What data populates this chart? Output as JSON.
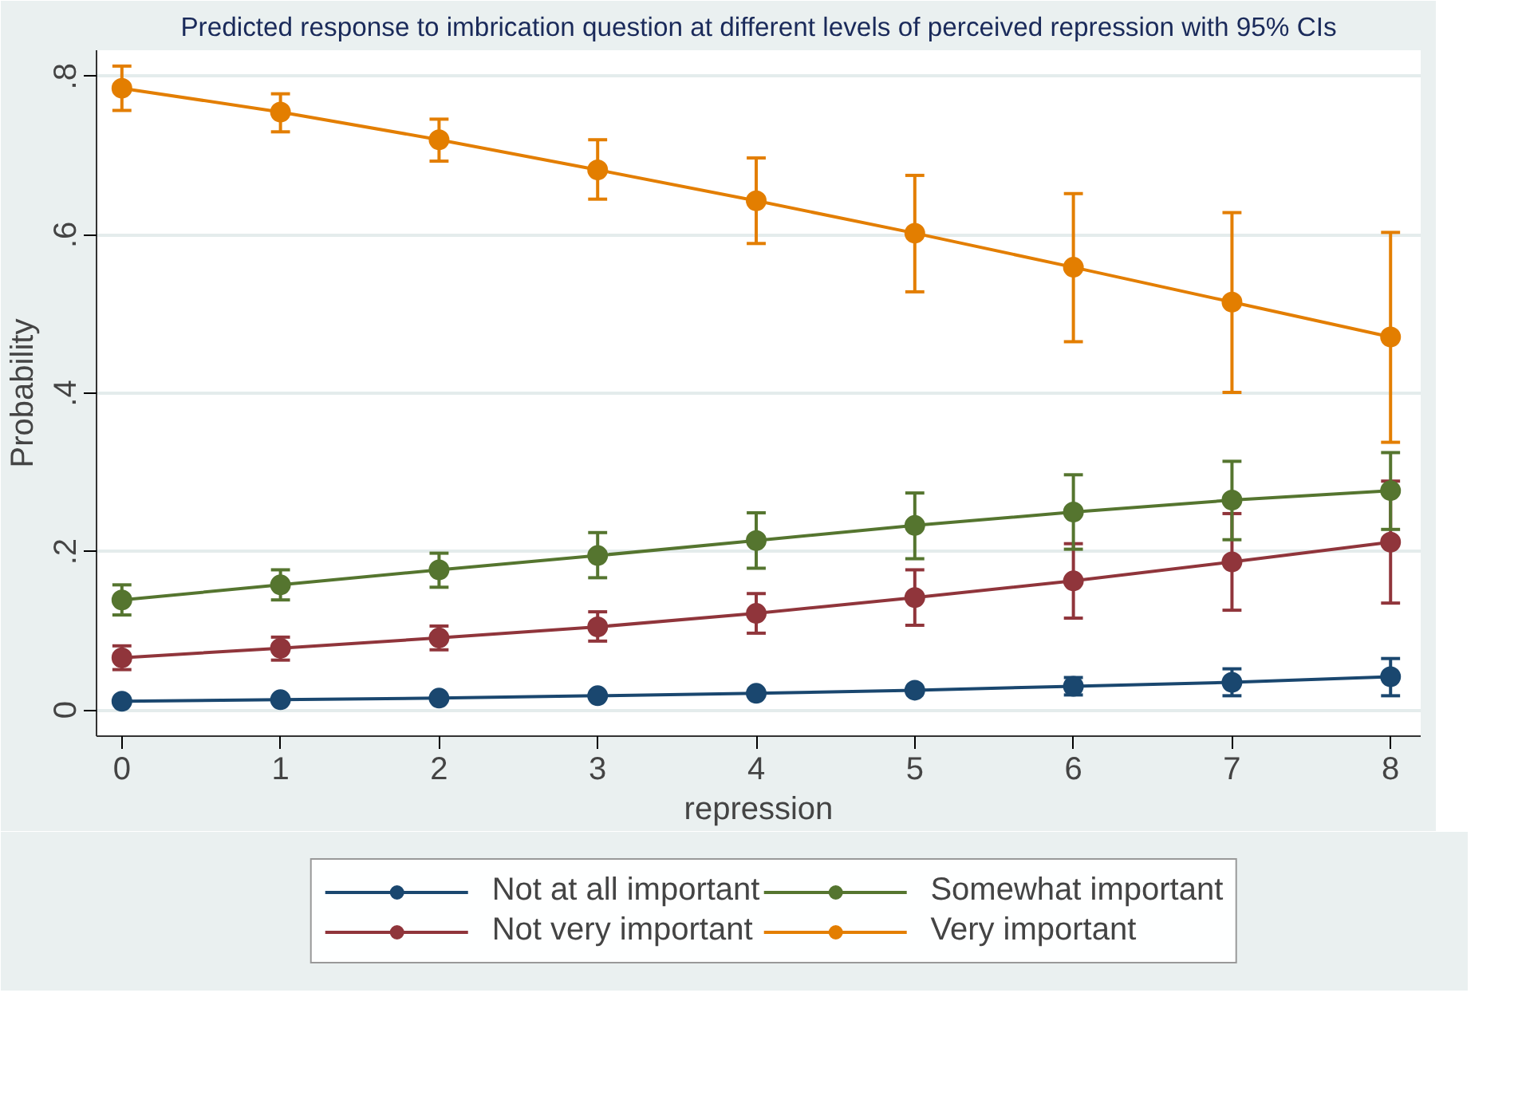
{
  "chart_data": {
    "type": "line",
    "title": "Predicted response to imbrication question at different levels of perceived repression with 95% CIs",
    "xlabel": "repression",
    "ylabel": "Probability",
    "x": [
      0,
      1,
      2,
      3,
      4,
      5,
      6,
      7,
      8
    ],
    "xlim": [
      -0.16,
      8.19
    ],
    "xticks": [
      0,
      1,
      2,
      3,
      4,
      5,
      6,
      7,
      8
    ],
    "ylim": [
      -0.033,
      0.833
    ],
    "yticks": [
      {
        "value": 0,
        "label": "0"
      },
      {
        "value": 0.2,
        "label": ".2"
      },
      {
        "value": 0.4,
        "label": ".4"
      },
      {
        "value": 0.6,
        "label": ".6"
      },
      {
        "value": 0.8,
        "label": ".8"
      }
    ],
    "grid": "y",
    "legend": "bottom",
    "marker": "circle",
    "line_style": "solid",
    "series": [
      {
        "name": "Not at all important",
        "color": "#1a476f",
        "values": [
          0.011,
          0.013,
          0.015,
          0.018,
          0.021,
          0.025,
          0.03,
          0.035,
          0.042
        ],
        "errors": [
          null,
          null,
          null,
          null,
          null,
          null,
          [
            0.019,
            0.041
          ],
          [
            0.018,
            0.052
          ],
          [
            0.018,
            0.065
          ]
        ]
      },
      {
        "name": "Not very important",
        "color": "#90353b",
        "values": [
          0.066,
          0.078,
          0.091,
          0.105,
          0.122,
          0.142,
          0.163,
          0.187,
          0.212
        ],
        "errors": [
          [
            0.051,
            0.081
          ],
          [
            0.063,
            0.092
          ],
          [
            0.076,
            0.106
          ],
          [
            0.087,
            0.124
          ],
          [
            0.097,
            0.147
          ],
          [
            0.107,
            0.177
          ],
          [
            0.116,
            0.21
          ],
          [
            0.126,
            0.248
          ],
          [
            0.135,
            0.289
          ]
        ]
      },
      {
        "name": "Somewhat important",
        "color": "#55752f",
        "values": [
          0.139,
          0.158,
          0.177,
          0.195,
          0.214,
          0.233,
          0.25,
          0.265,
          0.277
        ],
        "errors": [
          [
            0.12,
            0.158
          ],
          [
            0.139,
            0.177
          ],
          [
            0.155,
            0.198
          ],
          [
            0.167,
            0.224
          ],
          [
            0.179,
            0.249
          ],
          [
            0.191,
            0.274
          ],
          [
            0.203,
            0.297
          ],
          [
            0.215,
            0.314
          ],
          [
            0.228,
            0.325
          ]
        ]
      },
      {
        "name": "Very important",
        "color": "#e37e00",
        "values": [
          0.785,
          0.755,
          0.72,
          0.682,
          0.643,
          0.602,
          0.559,
          0.515,
          0.471
        ],
        "errors": [
          [
            0.757,
            0.813
          ],
          [
            0.73,
            0.778
          ],
          [
            0.693,
            0.746
          ],
          [
            0.645,
            0.72
          ],
          [
            0.589,
            0.697
          ],
          [
            0.528,
            0.675
          ],
          [
            0.465,
            0.652
          ],
          [
            0.401,
            0.628
          ],
          [
            0.338,
            0.603
          ]
        ]
      }
    ]
  }
}
